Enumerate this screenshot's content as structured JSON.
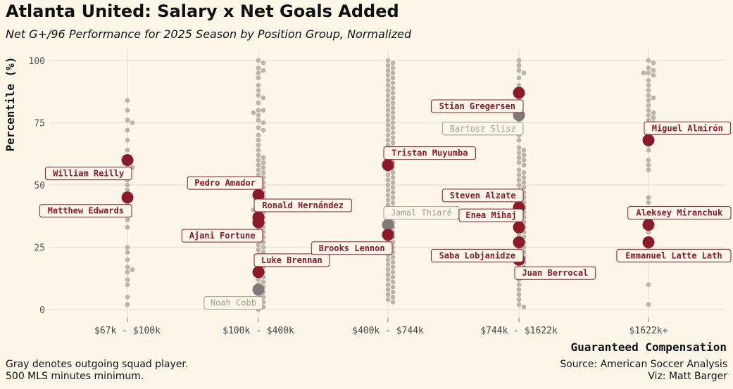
{
  "title": "Atlanta United: Salary x Net Goals Added",
  "subtitle": "Net G+/96 Performance for 2025 Season by Position Group, Normalized",
  "footer": {
    "left_1": "Gray denotes outgoing squad player.",
    "left_2": "500 MLS minutes minimum.",
    "right_1": "Source: American Soccer Analysis",
    "right_2": "Viz: Matt Barger"
  },
  "colors": {
    "background": "#fdf7ea",
    "grid": "#ece4d6",
    "league_point": "#beb3a8",
    "current_player": "#8b1a2b",
    "outgoing_player": "#7f7a76",
    "current_label": "#8b1a2b",
    "outgoing_label": "#a09a94"
  },
  "chart_data": {
    "type": "scatter",
    "title": "Atlanta United: Salary x Net Goals Added",
    "xlabel": "Guaranteed Compensation",
    "ylabel": "Percentile (%)",
    "ylim": [
      0,
      100
    ],
    "yticks": [
      0,
      25,
      50,
      75,
      100
    ],
    "categories": [
      "$67k - $100k",
      "$100k - $400k",
      "$400k - $744k",
      "$744k - $1622k",
      "$1622k+"
    ],
    "league_players": [
      {
        "category": 0,
        "values": [
          84,
          80,
          76,
          75,
          72,
          68,
          64,
          60,
          58,
          57,
          55,
          52,
          50,
          48,
          46,
          44,
          42,
          40,
          38,
          36,
          33,
          25,
          23,
          20,
          17,
          16,
          15,
          12,
          10,
          5,
          2
        ]
      },
      {
        "category": 1,
        "values": [
          100,
          99,
          97,
          96,
          95,
          93,
          90,
          88,
          86,
          85,
          83,
          80,
          80,
          79,
          78,
          76,
          75,
          73,
          72,
          70,
          68,
          66,
          64,
          62,
          61,
          60,
          59,
          58,
          57,
          56,
          55,
          54,
          53,
          52,
          51,
          50,
          49,
          48,
          47,
          46,
          45,
          44,
          43,
          42,
          41,
          40,
          40,
          39,
          38,
          37,
          36,
          35,
          34,
          33,
          32,
          31,
          30,
          29,
          28,
          27,
          26,
          25,
          24,
          23,
          22,
          21,
          20,
          19,
          18,
          17,
          16,
          15,
          14,
          13,
          12,
          11,
          10,
          9,
          8,
          7,
          6,
          5,
          4,
          4,
          3,
          2,
          1,
          0
        ]
      },
      {
        "category": 2,
        "values": [
          100,
          99,
          98,
          97,
          96,
          95,
          94,
          93,
          92,
          91,
          90,
          89,
          88,
          87,
          86,
          85,
          84,
          83,
          82,
          81,
          80,
          79,
          78,
          77,
          76,
          75,
          74,
          73,
          72,
          71,
          70,
          69,
          68,
          67,
          66,
          65,
          64,
          63,
          62,
          61,
          60,
          59,
          58,
          57,
          56,
          55,
          54,
          53,
          52,
          51,
          50,
          49,
          48,
          47,
          46,
          45,
          44,
          43,
          42,
          41,
          40,
          39,
          38,
          37,
          36,
          35,
          34,
          33,
          32,
          31,
          30,
          29,
          28,
          27,
          26,
          25,
          24,
          23,
          22,
          21,
          20,
          19,
          18,
          17,
          16,
          15,
          14,
          13,
          12,
          11,
          10,
          9,
          8,
          7,
          6,
          5,
          4,
          3
        ]
      },
      {
        "category": 3,
        "values": [
          100,
          98,
          96,
          95,
          93,
          90,
          88,
          85,
          83,
          80,
          78,
          75,
          73,
          70,
          68,
          65,
          64,
          63,
          62,
          61,
          60,
          59,
          58,
          56,
          55,
          54,
          53,
          52,
          51,
          50,
          49,
          48,
          47,
          46,
          45,
          44,
          43,
          42,
          41,
          40,
          39,
          38,
          37,
          36,
          35,
          34,
          33,
          32,
          31,
          30,
          29,
          28,
          27,
          26,
          25,
          24,
          23,
          22,
          21,
          20,
          19,
          18,
          17,
          16,
          15,
          14,
          12,
          10,
          8,
          6,
          4,
          2,
          1
        ]
      },
      {
        "category": 4,
        "values": [
          100,
          99,
          97,
          96,
          95,
          95,
          94,
          92,
          90,
          88,
          86,
          85,
          84,
          82,
          80,
          79,
          78,
          77,
          76,
          75,
          72,
          70,
          68,
          66,
          64,
          60,
          58,
          56,
          45,
          43,
          40,
          38,
          35,
          33,
          31,
          28,
          25,
          10,
          2
        ]
      }
    ],
    "highlighted_players": [
      {
        "name": "William Reilly",
        "category": 0,
        "value": 60,
        "status": "current",
        "label_side": "left-below"
      },
      {
        "name": "Matthew Edwards",
        "category": 0,
        "value": 45,
        "status": "current",
        "label_side": "left-below"
      },
      {
        "name": "Pedro Amador",
        "category": 1,
        "value": 46,
        "status": "current",
        "label_side": "left-above"
      },
      {
        "name": "Ronald Hernández",
        "category": 1,
        "value": 37,
        "status": "current",
        "label_side": "right-above"
      },
      {
        "name": "Ajani Fortune",
        "category": 1,
        "value": 35,
        "status": "current",
        "label_side": "left-below"
      },
      {
        "name": "Luke Brennan",
        "category": 1,
        "value": 15,
        "status": "current",
        "label_side": "right-above"
      },
      {
        "name": "Noah Cobb",
        "category": 1,
        "value": 8,
        "status": "outgoing",
        "label_side": "left-below"
      },
      {
        "name": "Tristan Muyumba",
        "category": 2,
        "value": 58,
        "status": "current",
        "label_side": "right-above"
      },
      {
        "name": "Jamal Thiaré",
        "category": 2,
        "value": 34,
        "status": "outgoing",
        "label_side": "right-above"
      },
      {
        "name": "Brooks Lennon",
        "category": 2,
        "value": 30,
        "status": "current",
        "label_side": "left-below"
      },
      {
        "name": "Stian Gregersen",
        "category": 3,
        "value": 87,
        "status": "current",
        "label_side": "left-below"
      },
      {
        "name": "Bartosz Slisz",
        "category": 3,
        "value": 78,
        "status": "outgoing",
        "label_side": "left-below"
      },
      {
        "name": "Steven Alzate",
        "category": 3,
        "value": 41,
        "status": "current",
        "label_side": "left-above"
      },
      {
        "name": "Enea Mihaj",
        "category": 3,
        "value": 33,
        "status": "current",
        "label_side": "left-above"
      },
      {
        "name": "Saba Lobjanidze",
        "category": 3,
        "value": 27,
        "status": "current",
        "label_side": "left-below"
      },
      {
        "name": "Juan Berrocal",
        "category": 3,
        "value": 20,
        "status": "current",
        "label_side": "right-below"
      },
      {
        "name": "Miguel Almirón",
        "category": 4,
        "value": 68,
        "status": "current",
        "label_side": "right-above"
      },
      {
        "name": "Aleksey Miranchuk",
        "category": 4,
        "value": 34,
        "status": "current",
        "label_side": "right-above"
      },
      {
        "name": "Emmanuel Latte Lath",
        "category": 4,
        "value": 27,
        "status": "current",
        "label_side": "right-below"
      }
    ]
  }
}
